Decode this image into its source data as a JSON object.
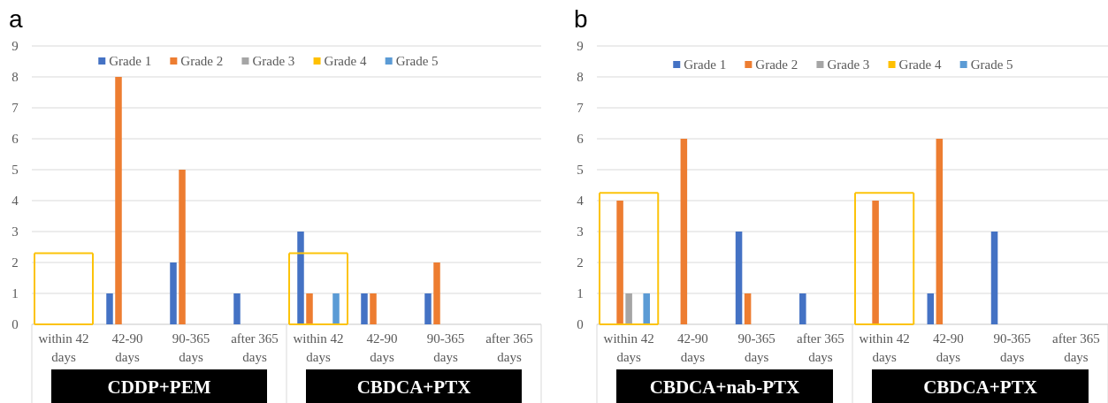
{
  "chart_data": [
    {
      "type": "bar",
      "title": "a",
      "categories": [
        "within 42 days",
        "42-90 days",
        "90-365 days",
        "after 365 days",
        "within 42 days",
        "42-90 days",
        "90-365 days",
        "after 365 days"
      ],
      "series": [
        {
          "name": "Grade 1",
          "color": "#4472c4",
          "values": [
            0,
            1,
            2,
            1,
            3,
            1,
            1,
            0
          ]
        },
        {
          "name": "Grade 2",
          "color": "#ed7d31",
          "values": [
            0,
            8,
            5,
            0,
            1,
            1,
            2,
            0
          ]
        },
        {
          "name": "Grade 3",
          "color": "#a5a5a5",
          "values": [
            0,
            0,
            0,
            0,
            0,
            0,
            0,
            0
          ]
        },
        {
          "name": "Grade 4",
          "color": "#ffc000",
          "values": [
            0,
            0,
            0,
            0,
            0,
            0,
            0,
            0
          ]
        },
        {
          "name": "Grade 5",
          "color": "#5b9bd5",
          "values": [
            0,
            0,
            0,
            0,
            1,
            0,
            0,
            0
          ]
        }
      ],
      "ylim": [
        0,
        9
      ],
      "yticks": [
        0,
        1,
        2,
        3,
        4,
        5,
        6,
        7,
        8,
        9
      ],
      "grid": "y",
      "legend": "top",
      "annotations": [
        "CDDP+PEM",
        "CBDCA+PTX"
      ]
    },
    {
      "type": "bar",
      "title": "b",
      "categories": [
        "within 42 days",
        "42-90 days",
        "90-365 days",
        "after 365 days",
        "within 42 days",
        "42-90 days",
        "90-365 days",
        "after 365 days"
      ],
      "series": [
        {
          "name": "Grade 1",
          "color": "#4472c4",
          "values": [
            0,
            0,
            3,
            1,
            0,
            1,
            3,
            0
          ]
        },
        {
          "name": "Grade 2",
          "color": "#ed7d31",
          "values": [
            4,
            6,
            1,
            0,
            4,
            6,
            0,
            0
          ]
        },
        {
          "name": "Grade 3",
          "color": "#a5a5a5",
          "values": [
            1,
            0,
            0,
            0,
            0,
            0,
            0,
            0
          ]
        },
        {
          "name": "Grade 4",
          "color": "#ffc000",
          "values": [
            0,
            0,
            0,
            0,
            0,
            0,
            0,
            0
          ]
        },
        {
          "name": "Grade 5",
          "color": "#5b9bd5",
          "values": [
            1,
            0,
            0,
            0,
            0,
            0,
            0,
            0
          ]
        }
      ],
      "ylim": [
        0,
        9
      ],
      "yticks": [
        0,
        1,
        2,
        3,
        4,
        5,
        6,
        7,
        8,
        9
      ],
      "grid": "y",
      "legend": "top",
      "annotations": [
        "CBDCA+nab-PTX",
        "CBDCA+PTX"
      ]
    }
  ]
}
